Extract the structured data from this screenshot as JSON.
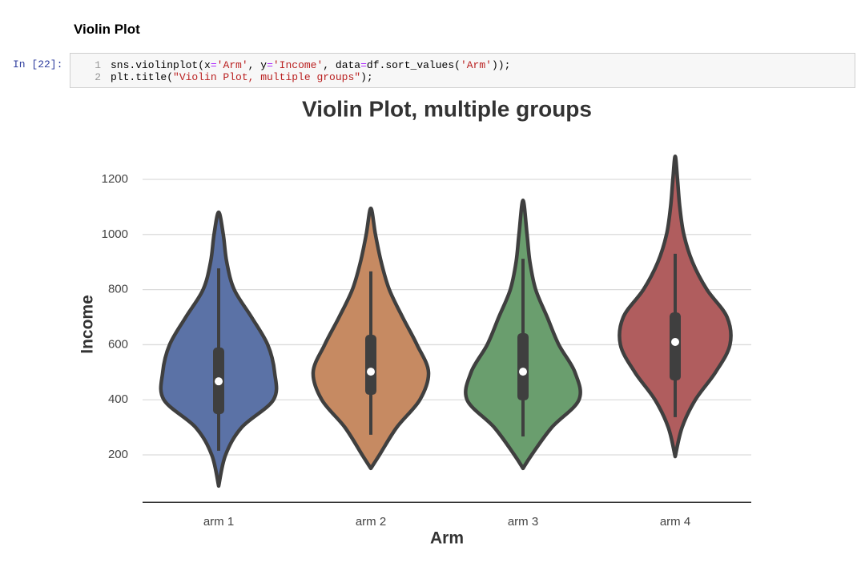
{
  "header": {
    "title": "Violin Plot"
  },
  "cell": {
    "prompt": "In [22]:",
    "lines": [
      {
        "number": 1,
        "text": "sns.violinplot(x='Arm', y='Income', data=df.sort_values('Arm'));"
      },
      {
        "number": 2,
        "text": "plt.title(\"Violin Plot, multiple groups\");"
      }
    ]
  },
  "chart_data": {
    "type": "violin",
    "title": "Violin Plot, multiple groups",
    "x_label": "Arm",
    "y_label": "Income",
    "categories": [
      "arm 1",
      "arm 2",
      "arm 3",
      "arm 4"
    ],
    "series": [
      {
        "color": "#5b72a6",
        "min": 87,
        "max": 1081,
        "whisker_low": 215,
        "q1": 348,
        "median": 467,
        "q3": 590,
        "whisker_high": 877,
        "levels": [
          87,
          200,
          300,
          400,
          500,
          600,
          700,
          800,
          900,
          1000,
          1081
        ],
        "density": [
          0,
          0.12,
          0.4,
          0.95,
          0.97,
          0.85,
          0.57,
          0.27,
          0.14,
          0.08,
          0
        ]
      },
      {
        "color": "#c68a62",
        "min": 151,
        "max": 1095,
        "whisker_low": 273,
        "q1": 418,
        "median": 502,
        "q3": 636,
        "whisker_high": 866,
        "levels": [
          151,
          200,
          300,
          400,
          500,
          600,
          700,
          800,
          900,
          1000,
          1095
        ],
        "density": [
          0,
          0.15,
          0.45,
          0.85,
          1.0,
          0.8,
          0.55,
          0.32,
          0.18,
          0.08,
          0
        ]
      },
      {
        "color": "#6a9e6e",
        "min": 151,
        "max": 1124,
        "whisker_low": 267,
        "q1": 398,
        "median": 502,
        "q3": 642,
        "whisker_high": 912,
        "levels": [
          151,
          200,
          300,
          400,
          500,
          600,
          700,
          800,
          900,
          1000,
          1124
        ],
        "density": [
          0,
          0.15,
          0.5,
          0.97,
          0.9,
          0.62,
          0.42,
          0.22,
          0.12,
          0.07,
          0
        ]
      },
      {
        "color": "#b05d5e",
        "min": 194,
        "max": 1284,
        "whisker_low": 337,
        "q1": 470,
        "median": 610,
        "q3": 717,
        "whisker_high": 930,
        "levels": [
          194,
          300,
          400,
          500,
          600,
          700,
          800,
          900,
          1000,
          1100,
          1200,
          1284
        ],
        "density": [
          0,
          0.12,
          0.35,
          0.7,
          0.95,
          0.9,
          0.55,
          0.3,
          0.15,
          0.08,
          0.04,
          0
        ]
      }
    ],
    "ylim": [
      28,
      1300
    ],
    "yticks": [
      200,
      400,
      600,
      800,
      1000,
      1200
    ],
    "grid": true
  }
}
